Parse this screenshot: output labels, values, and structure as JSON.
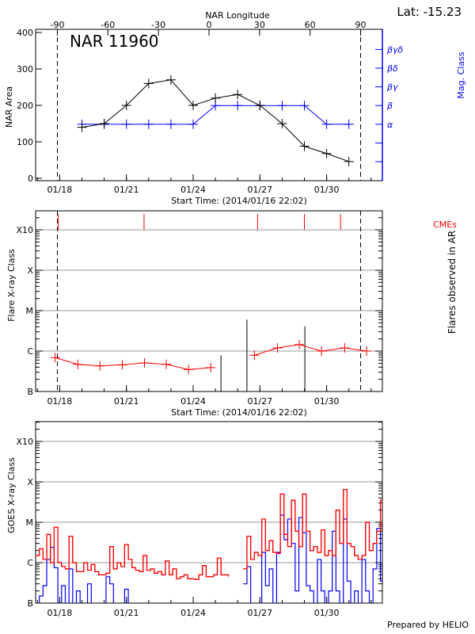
{
  "header": {
    "latitude_label": "Lat: -15.23"
  },
  "chart_data": [
    {
      "type": "line",
      "title": "NAR 11960",
      "xlabel": "Start Time: (2014/01/16 22:02)",
      "ylabel": "NAR Area",
      "y2label": "Mag. Class",
      "x2label": "NAR Longitude",
      "ylim": [
        0,
        400
      ],
      "xlim": [
        "2014-01-16T22:02",
        "2014-02-01T12:00"
      ],
      "x_ticks": [
        {
          "label": "01/18",
          "x": "2014-01-18T00:00"
        },
        {
          "label": "01/21",
          "x": "2014-01-21T00:00"
        },
        {
          "label": "01/24",
          "x": "2014-01-24T00:00"
        },
        {
          "label": "01/27",
          "x": "2014-01-27T00:00"
        },
        {
          "label": "01/30",
          "x": "2014-01-30T00:00"
        }
      ],
      "y_ticks": [
        "0",
        "100",
        "200",
        "300",
        "400"
      ],
      "longitude_ticks": [
        -90,
        -60,
        -30,
        0,
        30,
        60,
        90
      ],
      "limb_markers_longitude": [
        -90,
        90
      ],
      "mag_class_ticks": [
        "",
        "",
        "α",
        "β",
        "βγ",
        "βδ",
        "βγδ"
      ],
      "series": [
        {
          "role": "area",
          "color": "#000000",
          "x": [
            "2014-01-19T00:00",
            "2014-01-20T00:00",
            "2014-01-21T00:00",
            "2014-01-22T00:00",
            "2014-01-23T00:00",
            "2014-01-24T00:00",
            "2014-01-25T00:00",
            "2014-01-26T00:00",
            "2014-01-27T00:00",
            "2014-01-28T00:00",
            "2014-01-29T00:00",
            "2014-01-30T00:00",
            "2014-01-31T00:00"
          ],
          "values": [
            140,
            150,
            200,
            260,
            270,
            200,
            220,
            230,
            200,
            150,
            88,
            68,
            46
          ]
        },
        {
          "role": "mag_class",
          "color": "#0000ff",
          "x": [
            "2014-01-19T00:00",
            "2014-01-20T00:00",
            "2014-01-21T00:00",
            "2014-01-22T00:00",
            "2014-01-23T00:00",
            "2014-01-24T00:00",
            "2014-01-25T00:00",
            "2014-01-26T00:00",
            "2014-01-27T00:00",
            "2014-01-28T00:00",
            "2014-01-29T00:00",
            "2014-01-30T00:00",
            "2014-01-31T00:00"
          ],
          "values": [
            "α",
            "α",
            "α",
            "α",
            "α",
            "α",
            "β",
            "β",
            "β",
            "β",
            "β",
            "α",
            "α"
          ]
        }
      ]
    },
    {
      "type": "line",
      "xlabel": "Start Time: (2014/01/16 22:02)",
      "ylabel": "Flare X-ray Class",
      "y2label": "Flares observed in AR",
      "cme_label": "CMEs",
      "y_scale": "log",
      "ylim_flux_w_m2": [
        1e-07,
        0.003
      ],
      "y_ticks": [
        {
          "label": "B",
          "flux": 1e-07
        },
        {
          "label": "C",
          "flux": 1e-06
        },
        {
          "label": "M",
          "flux": 1e-05
        },
        {
          "label": "X",
          "flux": 0.0001
        },
        {
          "label": "X10",
          "flux": 0.001
        }
      ],
      "grid": true,
      "limb_markers_longitude": [
        -90,
        90
      ],
      "colors": {
        "flare_curve": "#ff0000",
        "flare_bars": "#000000",
        "cme": "#ff0000",
        "grid": "#999999"
      },
      "flare_curve": {
        "x": [
          "2014-01-17T19:00",
          "2014-01-18T19:30",
          "2014-01-19T19:30",
          "2014-01-20T19:30",
          "2014-01-21T19:30",
          "2014-01-22T19:00",
          "2014-01-23T19:00",
          "2014-01-24T19:00",
          "2014-01-26T18:00",
          "2014-01-27T19:00",
          "2014-01-28T18:30",
          "2014-01-29T18:30",
          "2014-01-30T19:30",
          "2014-01-31T19:00"
        ],
        "values": [
          6.9e-07,
          4.7e-07,
          4.3e-07,
          4.6e-07,
          5.1e-07,
          4.7e-07,
          3.5e-07,
          3.9e-07,
          7.9e-07,
          1.2e-06,
          1.45e-06,
          1e-06,
          1.2e-06,
          1e-06
        ],
        "gap_after_index": 7
      },
      "flares_observed": {
        "x": [
          "2014-01-25T06:00",
          "2014-01-26T10:00",
          "2014-01-29T00:30"
        ],
        "values": [
          7.8e-07,
          6e-06,
          4.1e-06
        ]
      },
      "cmes": [
        "2014-01-17T22:30",
        "2014-01-21T19:00",
        "2014-01-26T21:30",
        "2014-01-29T00:00",
        "2014-01-30T15:00"
      ]
    },
    {
      "type": "line",
      "ylabel": "GOES X-ray Class",
      "y_scale": "log",
      "ylim_flux_w_m2": [
        1e-07,
        0.003
      ],
      "y_ticks": [
        {
          "label": "B",
          "flux": 1e-07
        },
        {
          "label": "C",
          "flux": 1e-06
        },
        {
          "label": "M",
          "flux": 1e-05
        },
        {
          "label": "X",
          "flux": 0.0001
        },
        {
          "label": "X10",
          "flux": 0.001
        }
      ],
      "grid": true,
      "x_start": "2014-01-16T22:02",
      "x_step_hours": 4,
      "series": [
        {
          "role": "long_channel",
          "color": "#ff0000",
          "values": [
            1.5e-06,
            2.2e-06,
            1.2e-06,
            5e-06,
            1e-06,
            7.5e-06,
            1e-06,
            8e-07,
            7e-07,
            4.5e-06,
            1e-06,
            6e-07,
            6e-07,
            1e-06,
            6.5e-07,
            9e-07,
            6e-07,
            5e-07,
            5e-07,
            5.5e-07,
            2.5e-06,
            7e-07,
            1e-06,
            8e-07,
            2.8e-06,
            1.2e-06,
            7.5e-07,
            6.5e-07,
            6e-07,
            1.5e-06,
            6.5e-07,
            7e-07,
            5.5e-07,
            6e-07,
            5e-07,
            1.1e-06,
            5e-07,
            7e-07,
            4e-07,
            4.5e-07,
            5e-07,
            4e-07,
            4e-07,
            3.8e-07,
            5e-07,
            8.5e-07,
            4.5e-07,
            4.5e-07,
            5e-07,
            1.3e-06,
            5e-07,
            5e-07,
            4.5e-07,
            null,
            null,
            null,
            7e-07,
            4.5e-06,
            1.2e-06,
            1.8e-06,
            1.5e-06,
            1.2e-05,
            2e-06,
            3.5e-06,
            1.8e-06,
            1.7e-06,
            5e-05,
            5e-06,
            2.5e-06,
            3.5e-05,
            6e-06,
            2.5e-06,
            5e-05,
            6e-06,
            2e-06,
            2.5e-06,
            1.8e-06,
            6.5e-06,
            1.5e-06,
            2e-06,
            1.5e-06,
            2e-05,
            3e-06,
            6.5e-05,
            3e-06,
            2.5e-06,
            1.5e-06,
            1.2e-06,
            1.5e-06,
            1e-05,
            2e-06,
            3e-06,
            6e-06,
            3.5e-05,
            3e-06
          ]
        },
        {
          "role": "short_channel",
          "color": "#0000ff",
          "values": [
            1e-08,
            1.5e-07,
            2.7e-07,
            1.2e-06,
            2.4e-06,
            7.5e-07,
            1e-08,
            2.7e-07,
            1e-08,
            7e-07,
            1e-08,
            2e-07,
            1e-08,
            1e-08,
            3e-07,
            1e-08,
            1e-08,
            1e-08,
            1e-08,
            4.5e-07,
            3e-07,
            1e-08,
            1e-08,
            1e-08,
            2.2e-07,
            1e-08,
            1e-08,
            1e-08,
            1e-08,
            1e-08,
            1e-08,
            1e-08,
            1e-08,
            1e-08,
            1e-08,
            1e-08,
            1e-08,
            1e-08,
            1e-08,
            1e-08,
            1e-08,
            1e-08,
            1e-08,
            1e-08,
            1e-08,
            1e-08,
            1e-08,
            1e-08,
            1e-08,
            1e-08,
            1e-08,
            1e-08,
            1e-08,
            null,
            null,
            null,
            3e-07,
            8e-07,
            1e-08,
            1e-08,
            1e-08,
            1.8e-06,
            2.7e-07,
            7e-07,
            1e-08,
            1.8e-06,
            1.5e-05,
            3.7e-06,
            1.2e-05,
            3e-06,
            2e-07,
            1.3e-05,
            5.5e-06,
            2.7e-07,
            2e-07,
            1e-08,
            1.2e-06,
            2e-07,
            1e-08,
            2e-07,
            6e-06,
            2e-07,
            1e-08,
            1.2e-05,
            3.5e-07,
            1e-08,
            2e-07,
            1e-08,
            1.2e-06,
            2e-07,
            1e-08,
            7e-07,
            7e-06,
            3.5e-07,
            2e-07
          ]
        }
      ],
      "x_ticks": [
        "01/18",
        "01/21",
        "01/24",
        "01/27",
        "01/30"
      ]
    }
  ],
  "footer": {
    "credit": "Prepared by HELIO"
  }
}
